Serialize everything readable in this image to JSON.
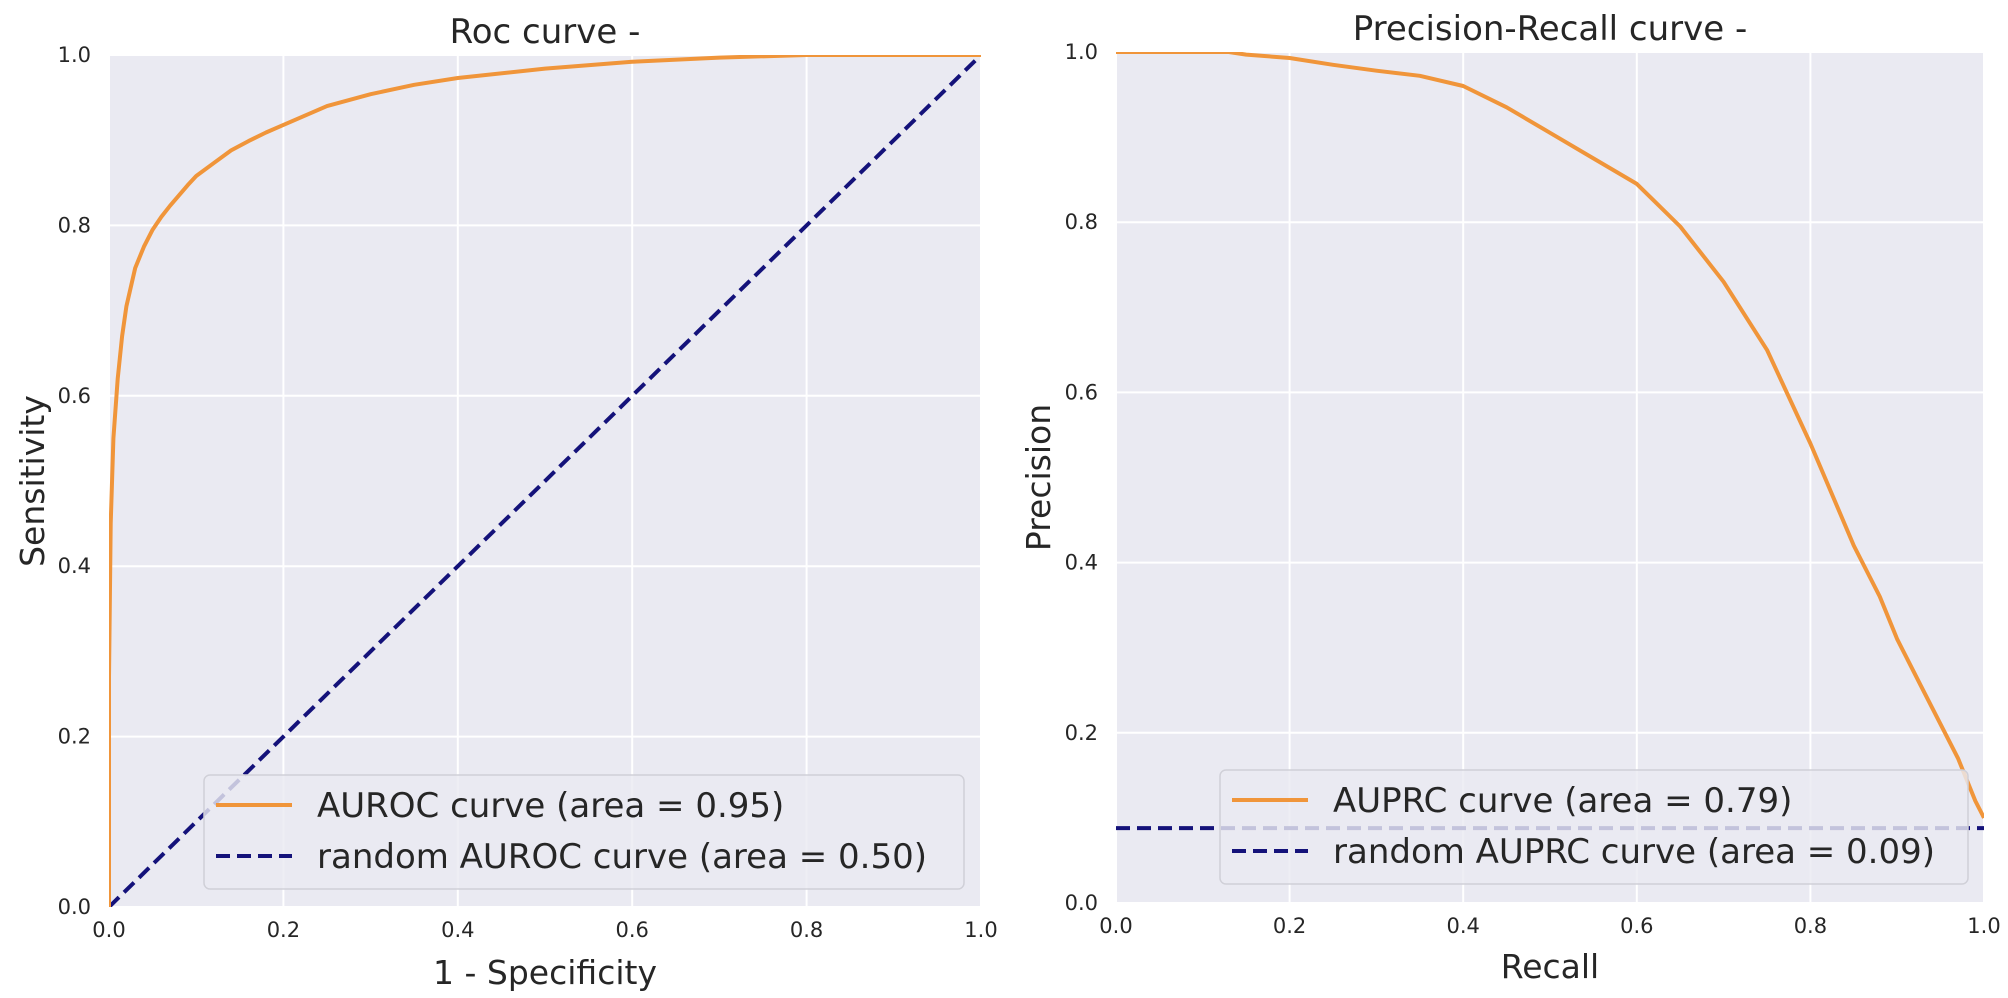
{
  "chart_data": [
    {
      "type": "line",
      "title": "Roc curve -",
      "xlabel": "1 - Specificity",
      "ylabel": "Sensitivity",
      "xlim": [
        0.0,
        1.0
      ],
      "ylim": [
        0.0,
        1.0
      ],
      "xticks": [
        "0.0",
        "0.2",
        "0.4",
        "0.6",
        "0.8",
        "1.0"
      ],
      "yticks": [
        "0.0",
        "0.2",
        "0.4",
        "0.6",
        "0.8",
        "1.0"
      ],
      "grid": true,
      "legend_position": "lower-right",
      "series": [
        {
          "name": "AUROC curve (area = 0.95)",
          "color": "#f0953a",
          "style": "solid",
          "x": [
            0.0,
            0.0,
            0.002,
            0.005,
            0.01,
            0.015,
            0.02,
            0.03,
            0.04,
            0.05,
            0.06,
            0.07,
            0.08,
            0.09,
            0.1,
            0.12,
            0.14,
            0.16,
            0.18,
            0.2,
            0.25,
            0.3,
            0.35,
            0.4,
            0.5,
            0.6,
            0.7,
            0.8,
            0.9,
            1.0
          ],
          "y": [
            0.0,
            0.27,
            0.45,
            0.55,
            0.62,
            0.67,
            0.705,
            0.75,
            0.775,
            0.795,
            0.81,
            0.823,
            0.835,
            0.847,
            0.858,
            0.873,
            0.888,
            0.899,
            0.909,
            0.918,
            0.94,
            0.954,
            0.965,
            0.973,
            0.984,
            0.992,
            0.997,
            1.0,
            1.0,
            1.0
          ]
        },
        {
          "name": "random AUROC curve (area = 0.50)",
          "color": "#14127a",
          "style": "dashed",
          "x": [
            0.0,
            1.0
          ],
          "y": [
            0.0,
            1.0
          ]
        }
      ]
    },
    {
      "type": "line",
      "title": "Precision-Recall curve -",
      "xlabel": "Recall",
      "ylabel": "Precision",
      "xlim": [
        0.0,
        1.0
      ],
      "ylim": [
        0.0,
        1.0
      ],
      "xticks": [
        "0.0",
        "0.2",
        "0.4",
        "0.6",
        "0.8",
        "1.0"
      ],
      "yticks": [
        "0.0",
        "0.2",
        "0.4",
        "0.6",
        "0.8",
        "1.0"
      ],
      "grid": true,
      "legend_position": "lower-right",
      "series": [
        {
          "name": "AUPRC curve (area = 0.79)",
          "color": "#f0953a",
          "style": "solid",
          "x": [
            0.0,
            0.1,
            0.13,
            0.15,
            0.2,
            0.25,
            0.3,
            0.35,
            0.4,
            0.45,
            0.5,
            0.55,
            0.6,
            0.65,
            0.7,
            0.75,
            0.8,
            0.85,
            0.88,
            0.9,
            0.93,
            0.95,
            0.97,
            0.99,
            1.0
          ],
          "y": [
            1.0,
            1.0,
            1.0,
            0.997,
            0.993,
            0.985,
            0.978,
            0.972,
            0.96,
            0.935,
            0.905,
            0.875,
            0.845,
            0.795,
            0.73,
            0.65,
            0.54,
            0.42,
            0.36,
            0.31,
            0.25,
            0.21,
            0.17,
            0.12,
            0.1
          ]
        },
        {
          "name": "random AUPRC curve (area = 0.09)",
          "color": "#14127a",
          "style": "dashed",
          "x": [
            0.0,
            1.0
          ],
          "y": [
            0.088,
            0.088
          ]
        }
      ]
    }
  ]
}
